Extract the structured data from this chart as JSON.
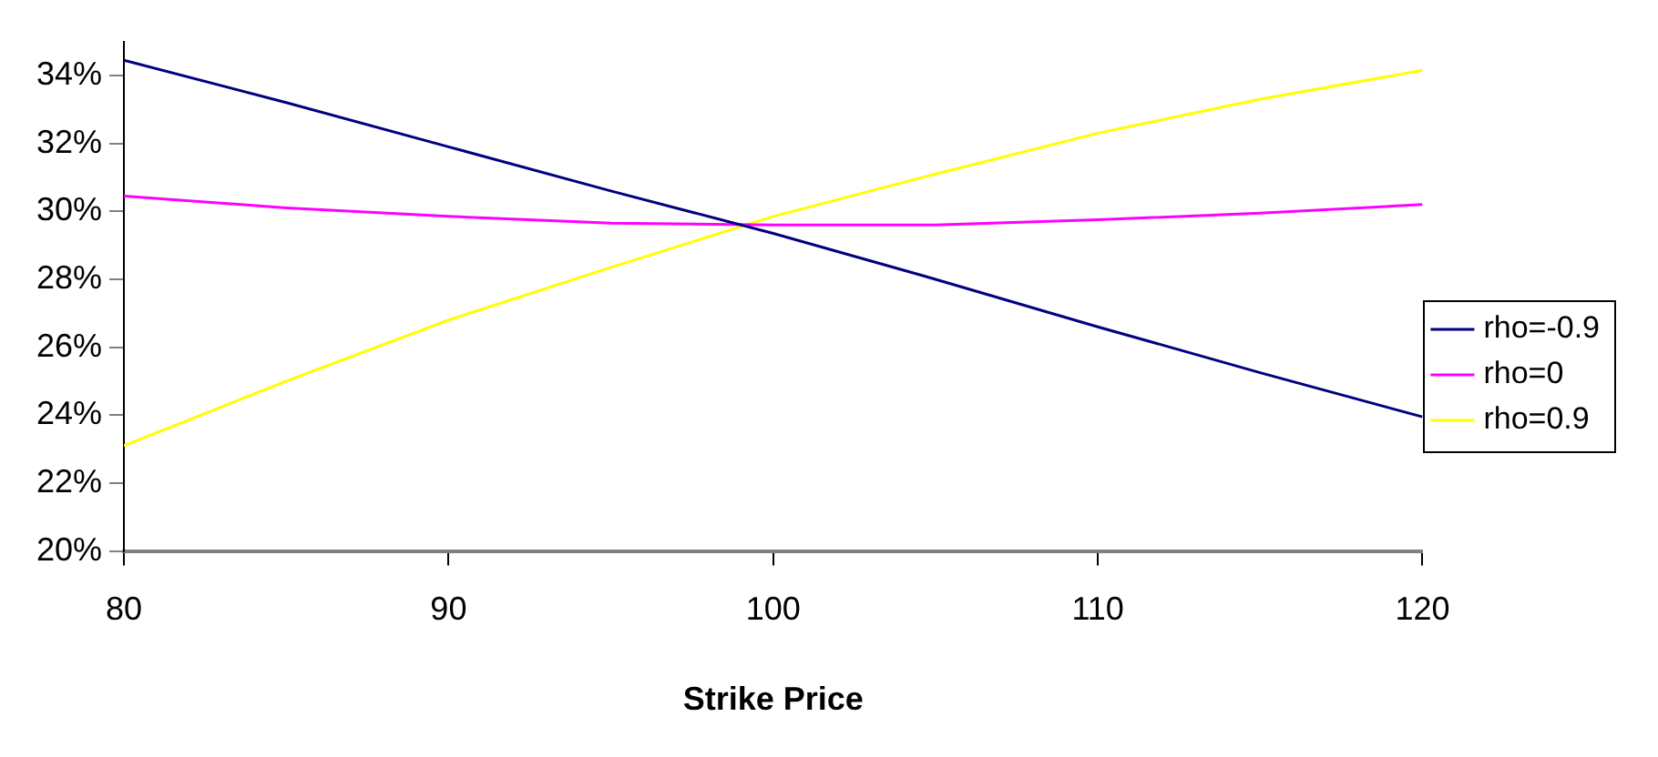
{
  "chart_data": {
    "type": "line",
    "xlabel": "Strike Price",
    "x": [
      80,
      85,
      90,
      95,
      100,
      105,
      110,
      115,
      120
    ],
    "series": [
      {
        "name": "rho=-0.9",
        "color": "#000080",
        "values": [
          34.45,
          33.2,
          31.9,
          30.6,
          29.35,
          28.0,
          26.6,
          25.25,
          23.95
        ]
      },
      {
        "name": "rho=0",
        "color": "#ff00ff",
        "values": [
          30.45,
          30.1,
          29.85,
          29.65,
          29.6,
          29.6,
          29.75,
          29.95,
          30.2
        ]
      },
      {
        "name": "rho=0.9",
        "color": "#ffff00",
        "values": [
          23.1,
          25.0,
          26.8,
          28.35,
          29.85,
          31.1,
          32.3,
          33.3,
          34.15
        ]
      }
    ],
    "xlim": [
      80,
      120
    ],
    "xticks": [
      80,
      90,
      100,
      110,
      120
    ],
    "ylim": [
      20,
      35
    ],
    "yticks": [
      {
        "value": 20,
        "label": "20%"
      },
      {
        "value": 22,
        "label": "22%"
      },
      {
        "value": 24,
        "label": "24%"
      },
      {
        "value": 26,
        "label": "26%"
      },
      {
        "value": 28,
        "label": "28%"
      },
      {
        "value": 30,
        "label": "30%"
      },
      {
        "value": 32,
        "label": "32%"
      },
      {
        "value": 34,
        "label": "34%"
      }
    ],
    "legend": "right",
    "marker": "none",
    "line_style": "solid"
  }
}
